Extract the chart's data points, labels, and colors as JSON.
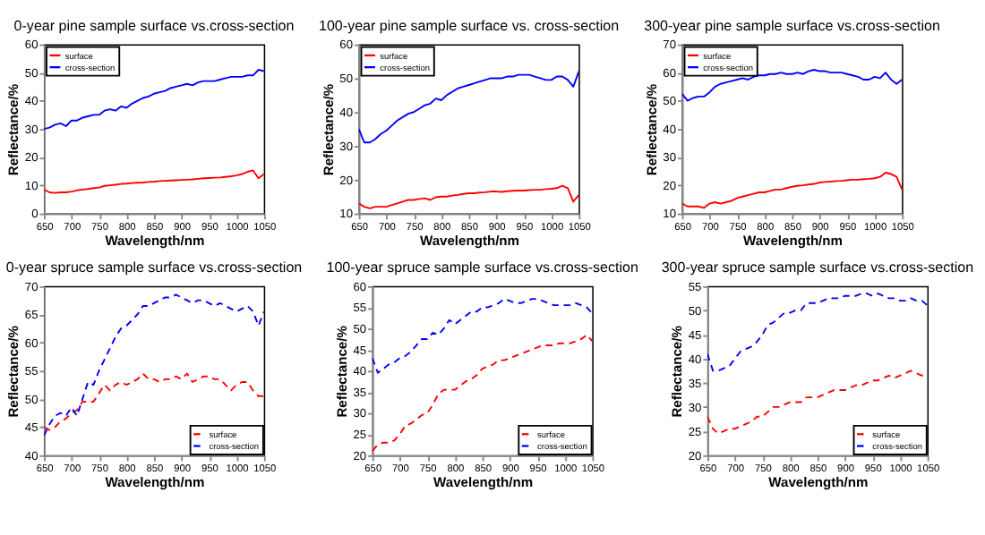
{
  "chart_data": [
    {
      "type": "line",
      "title": "0-year pine sample surface vs.cross-section",
      "xlabel": "Wavelength/nm",
      "ylabel": "Reflectance/%",
      "legend": "top left",
      "xlim": [
        650,
        1050
      ],
      "xticks": [
        650,
        700,
        750,
        800,
        850,
        900,
        950,
        1000,
        1050
      ],
      "ylim": [
        0,
        60
      ],
      "yticks": [
        0,
        10,
        20,
        30,
        40,
        50,
        60
      ],
      "x": [
        650,
        660,
        670,
        680,
        690,
        700,
        710,
        720,
        730,
        740,
        750,
        760,
        770,
        780,
        790,
        800,
        810,
        820,
        830,
        840,
        850,
        860,
        870,
        880,
        890,
        900,
        910,
        920,
        930,
        940,
        950,
        960,
        970,
        980,
        990,
        1000,
        1010,
        1020,
        1030,
        1040,
        1050
      ],
      "series": [
        {
          "name": "surface",
          "color": "#ff0000",
          "line_style": "solid",
          "values": [
            8.5,
            7.5,
            7.3,
            7.5,
            7.5,
            7.8,
            8.2,
            8.5,
            8.7,
            9,
            9.2,
            9.8,
            10,
            10.2,
            10.5,
            10.6,
            10.8,
            10.9,
            11,
            11.2,
            11.3,
            11.5,
            11.6,
            11.7,
            11.8,
            11.9,
            12,
            12.1,
            12.3,
            12.5,
            12.6,
            12.7,
            12.8,
            13,
            13.2,
            13.5,
            14,
            14.8,
            15.3,
            12.5,
            14
          ]
        },
        {
          "name": "cross-section",
          "color": "#0000ff",
          "line_style": "solid",
          "values": [
            30,
            30.5,
            31.5,
            32,
            31,
            33,
            33,
            34,
            34.5,
            35,
            35,
            36.5,
            37,
            36.5,
            38,
            37.5,
            39,
            40,
            41,
            41.5,
            42.5,
            43,
            43.5,
            44.5,
            45,
            45.5,
            46,
            45.5,
            46.5,
            47,
            47,
            47,
            47.5,
            48,
            48.5,
            48.5,
            48.5,
            49,
            49,
            51,
            50.5
          ]
        }
      ]
    },
    {
      "type": "line",
      "title": "100-year pine sample surface vs. cross-section",
      "xlabel": "Wavelength/nm",
      "ylabel": "Reflectance/%",
      "legend": "top left",
      "xlim": [
        650,
        1050
      ],
      "xticks": [
        650,
        700,
        750,
        800,
        850,
        900,
        950,
        1000,
        1050
      ],
      "ylim": [
        10,
        60
      ],
      "yticks": [
        10,
        20,
        30,
        40,
        50,
        60
      ],
      "x": [
        650,
        660,
        670,
        680,
        690,
        700,
        710,
        720,
        730,
        740,
        750,
        760,
        770,
        780,
        790,
        800,
        810,
        820,
        830,
        840,
        850,
        860,
        870,
        880,
        890,
        900,
        910,
        920,
        930,
        940,
        950,
        960,
        970,
        980,
        990,
        1000,
        1010,
        1020,
        1030,
        1040,
        1050
      ],
      "series": [
        {
          "name": "surface",
          "color": "#ff0000",
          "line_style": "solid",
          "values": [
            13,
            12,
            11.5,
            12,
            12,
            12,
            12.5,
            13,
            13.5,
            14,
            14,
            14.3,
            14.5,
            14,
            14.8,
            15,
            15,
            15.3,
            15.5,
            15.8,
            16,
            16,
            16.2,
            16.3,
            16.5,
            16.5,
            16.4,
            16.6,
            16.7,
            16.8,
            16.8,
            16.9,
            17,
            17,
            17.2,
            17.3,
            17.5,
            18.2,
            17.5,
            13.5,
            15.5
          ]
        },
        {
          "name": "cross-section",
          "color": "#0000ff",
          "line_style": "solid",
          "values": [
            35,
            31,
            31,
            32,
            33.5,
            34.5,
            36,
            37.5,
            38.5,
            39.5,
            40,
            41,
            42,
            42.5,
            44,
            43.5,
            45,
            46,
            47,
            47.5,
            48,
            48.5,
            49,
            49.5,
            50,
            50,
            50,
            50.5,
            50.5,
            51,
            51,
            51,
            50.5,
            50,
            49.5,
            49.5,
            50.5,
            50.5,
            49.5,
            47.5,
            52
          ]
        }
      ]
    },
    {
      "type": "line",
      "title": "300-year pine sample surface vs.cross-section",
      "xlabel": "Wavelength/nm",
      "ylabel": "Reflectance/%",
      "legend": "top left",
      "xlim": [
        650,
        1050
      ],
      "xticks": [
        650,
        700,
        750,
        800,
        850,
        900,
        950,
        1000,
        1050
      ],
      "ylim": [
        10,
        70
      ],
      "yticks": [
        10,
        20,
        30,
        40,
        50,
        60,
        70
      ],
      "x": [
        650,
        660,
        670,
        680,
        690,
        700,
        710,
        720,
        730,
        740,
        750,
        760,
        770,
        780,
        790,
        800,
        810,
        820,
        830,
        840,
        850,
        860,
        870,
        880,
        890,
        900,
        910,
        920,
        930,
        940,
        950,
        960,
        970,
        980,
        990,
        1000,
        1010,
        1020,
        1030,
        1040,
        1050
      ],
      "series": [
        {
          "name": "surface",
          "color": "#ff0000",
          "line_style": "solid",
          "values": [
            13.5,
            12.5,
            12.5,
            12.5,
            12,
            13.5,
            14,
            13.5,
            14,
            14.5,
            15.5,
            16,
            16.5,
            17,
            17.5,
            17.5,
            18,
            18.5,
            18.5,
            19,
            19.5,
            19.8,
            20,
            20.3,
            20.5,
            21,
            21.2,
            21.3,
            21.5,
            21.6,
            21.8,
            22,
            22,
            22.2,
            22.3,
            22.5,
            23,
            24.5,
            24,
            23,
            18.5
          ]
        },
        {
          "name": "cross-section",
          "color": "#0000ff",
          "line_style": "solid",
          "values": [
            52.5,
            50,
            51,
            51.5,
            51.5,
            53,
            55,
            56,
            56.5,
            57,
            57.5,
            58,
            57.5,
            58.5,
            59,
            59,
            59.5,
            59.5,
            60,
            59.5,
            59.5,
            60,
            59.5,
            60.5,
            61,
            60.5,
            60.5,
            60,
            60,
            60,
            59.5,
            59,
            58.5,
            57.5,
            57.5,
            58.5,
            58,
            60,
            57.5,
            56,
            57.5
          ]
        }
      ]
    },
    {
      "type": "line",
      "title": "0-year spruce sample surface vs.cross-section",
      "xlabel": "Wavelength/nm",
      "ylabel": "Reflectance/%",
      "legend": "bottom right",
      "xlim": [
        650,
        1050
      ],
      "xticks": [
        650,
        700,
        750,
        800,
        850,
        900,
        950,
        1000,
        1050
      ],
      "ylim": [
        40,
        70
      ],
      "yticks": [
        40,
        45,
        50,
        55,
        60,
        65,
        70
      ],
      "x": [
        650,
        660,
        670,
        680,
        690,
        700,
        710,
        720,
        730,
        740,
        750,
        760,
        770,
        780,
        790,
        800,
        810,
        820,
        830,
        840,
        850,
        860,
        870,
        880,
        890,
        900,
        910,
        920,
        930,
        940,
        950,
        960,
        970,
        980,
        990,
        1000,
        1010,
        1020,
        1030,
        1040,
        1050
      ],
      "series": [
        {
          "name": "surface",
          "color": "#ff0000",
          "line_style": "dashed",
          "values": [
            45,
            44.5,
            45,
            46,
            46.5,
            47.5,
            48,
            49.5,
            49.5,
            49.5,
            51,
            52.5,
            51.5,
            52.5,
            53,
            52.5,
            53,
            53.5,
            54.5,
            53.5,
            53.5,
            53,
            53.5,
            53.5,
            54,
            53.5,
            54.5,
            53,
            53.5,
            54,
            54,
            53.5,
            53.5,
            52.5,
            51.5,
            52.5,
            53,
            53,
            51.5,
            50.5,
            50.5
          ]
        },
        {
          "name": "cross-section",
          "color": "#0000ff",
          "line_style": "dashed",
          "values": [
            43.5,
            45.5,
            47,
            47.5,
            47,
            48.5,
            47,
            50,
            53,
            52.5,
            55,
            57,
            59,
            61,
            62.5,
            63,
            64,
            65,
            66.5,
            66.5,
            67,
            67.5,
            68,
            68,
            68.5,
            68,
            67.5,
            67,
            67.5,
            67.5,
            67,
            66.5,
            67,
            66.5,
            66,
            65.5,
            66,
            66.5,
            65.5,
            63,
            65.5
          ]
        }
      ]
    },
    {
      "type": "line",
      "title": "100-year spruce sample surface vs.cross-section",
      "xlabel": "Wavelength/nm",
      "ylabel": "Reflectance/%",
      "legend": "bottom right",
      "xlim": [
        650,
        1050
      ],
      "xticks": [
        650,
        700,
        750,
        800,
        850,
        900,
        950,
        1000,
        1050
      ],
      "ylim": [
        20,
        60
      ],
      "yticks": [
        20,
        25,
        30,
        35,
        40,
        45,
        50,
        55,
        60
      ],
      "x": [
        650,
        660,
        670,
        680,
        690,
        700,
        710,
        720,
        730,
        740,
        750,
        760,
        770,
        780,
        790,
        800,
        810,
        820,
        830,
        840,
        850,
        860,
        870,
        880,
        890,
        900,
        910,
        920,
        930,
        940,
        950,
        960,
        970,
        980,
        990,
        1000,
        1010,
        1020,
        1030,
        1040,
        1050
      ],
      "series": [
        {
          "name": "surface",
          "color": "#ff0000",
          "line_style": "dashed",
          "values": [
            21,
            22.5,
            23,
            23,
            23.5,
            25,
            27,
            27.5,
            28.5,
            29.5,
            30,
            32,
            34.5,
            35.5,
            35.5,
            35.5,
            36.5,
            37.5,
            38,
            39,
            40.5,
            41,
            41.5,
            42.5,
            42.5,
            43,
            43.5,
            44,
            44.5,
            45,
            45.5,
            46,
            46,
            46,
            46.5,
            46.5,
            46.5,
            47,
            47.5,
            48.5,
            47
          ]
        },
        {
          "name": "cross-section",
          "color": "#0000ff",
          "line_style": "dashed",
          "values": [
            43,
            39.5,
            40.5,
            41.5,
            42,
            43,
            43.5,
            44.5,
            46,
            47.5,
            47.5,
            49,
            48.5,
            50,
            52,
            51,
            52,
            53,
            54,
            54,
            55,
            55,
            55.5,
            56,
            57,
            56.5,
            56,
            56,
            56.5,
            57,
            57,
            56.5,
            56,
            55.5,
            55.5,
            55.5,
            55.5,
            56,
            55.5,
            55,
            53.5
          ]
        }
      ]
    },
    {
      "type": "line",
      "title": "300-year spruce sample surface vs.cross-section",
      "xlabel": "Wavelength/nm",
      "ylabel": "Reflectance/%",
      "legend": "bottom right",
      "xlim": [
        650,
        1050
      ],
      "xticks": [
        650,
        700,
        750,
        800,
        850,
        900,
        950,
        1000,
        1050
      ],
      "ylim": [
        20,
        55
      ],
      "yticks": [
        20,
        25,
        30,
        35,
        40,
        45,
        50,
        55
      ],
      "x": [
        650,
        660,
        670,
        680,
        690,
        700,
        710,
        720,
        730,
        740,
        750,
        760,
        770,
        780,
        790,
        800,
        810,
        820,
        830,
        840,
        850,
        860,
        870,
        880,
        890,
        900,
        910,
        920,
        930,
        940,
        950,
        960,
        970,
        980,
        990,
        1000,
        1010,
        1020,
        1030,
        1040,
        1050
      ],
      "series": [
        {
          "name": "surface",
          "color": "#ff0000",
          "line_style": "dashed",
          "values": [
            28,
            25.5,
            24.5,
            25,
            25.5,
            25.5,
            26,
            26.5,
            27,
            28,
            28,
            29,
            30,
            30,
            30.5,
            31,
            31,
            31,
            32,
            32,
            32,
            32.5,
            33,
            33.5,
            33.5,
            33.5,
            34,
            34.5,
            34.5,
            35,
            35.5,
            35.5,
            36,
            36.5,
            36,
            36.5,
            37,
            37.5,
            37,
            36.5,
            37
          ]
        },
        {
          "name": "cross-section",
          "color": "#0000ff",
          "line_style": "dashed",
          "values": [
            41,
            37.5,
            37.5,
            38,
            38.5,
            40,
            41.5,
            42,
            42.5,
            43.5,
            45,
            47,
            47.5,
            48.5,
            49.5,
            49.5,
            50,
            50,
            51.5,
            51.5,
            51.5,
            52,
            52.5,
            52.5,
            52.5,
            53,
            53,
            53,
            53.5,
            53.5,
            53,
            53.5,
            53,
            52.5,
            52.5,
            52,
            52,
            52.5,
            52,
            52,
            51
          ]
        }
      ]
    }
  ]
}
